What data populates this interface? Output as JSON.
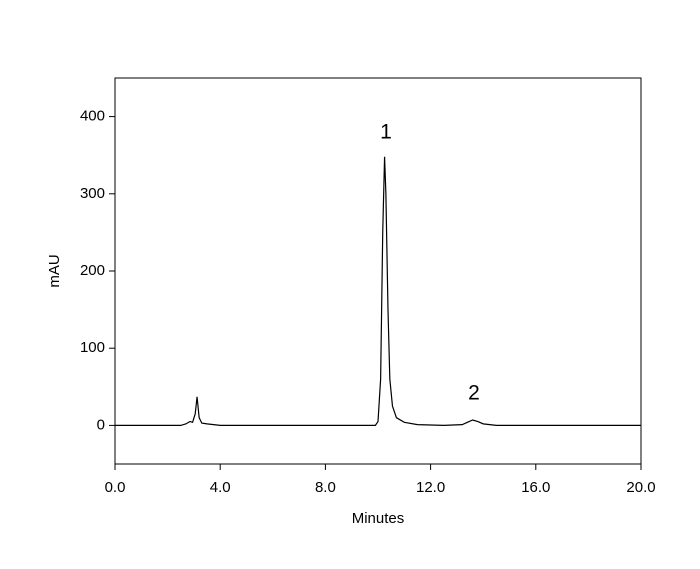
{
  "chart_data": {
    "type": "line",
    "xlabel": "Minutes",
    "ylabel": "mAU",
    "x": [
      0,
      2.5,
      2.7,
      2.85,
      2.95,
      3.05,
      3.12,
      3.2,
      3.3,
      3.5,
      4.0,
      8.0,
      9.9,
      10.0,
      10.1,
      10.18,
      10.25,
      10.3,
      10.38,
      10.45,
      10.55,
      10.7,
      11.0,
      11.5,
      12.5,
      13.2,
      13.4,
      13.6,
      13.8,
      14.0,
      14.5,
      20
    ],
    "values": [
      0,
      0,
      2,
      5,
      4,
      15,
      37,
      10,
      3,
      2,
      0,
      0,
      0,
      5,
      60,
      250,
      348,
      300,
      150,
      60,
      25,
      10,
      4,
      1,
      0,
      1,
      4,
      7,
      5,
      2,
      0,
      0
    ],
    "color": "#000000",
    "xlim": [
      0,
      20
    ],
    "xticks": [
      {
        "value": 0,
        "label": "0.0"
      },
      {
        "value": 4,
        "label": "4.0"
      },
      {
        "value": 8,
        "label": "8.0"
      },
      {
        "value": 12,
        "label": "12.0"
      },
      {
        "value": 16,
        "label": "16.0"
      },
      {
        "value": 20,
        "label": "20.0"
      }
    ],
    "ylim": [
      -50,
      450
    ],
    "yticks": [
      0,
      100,
      200,
      300,
      400
    ],
    "annotations": [
      "1",
      "2"
    ]
  }
}
